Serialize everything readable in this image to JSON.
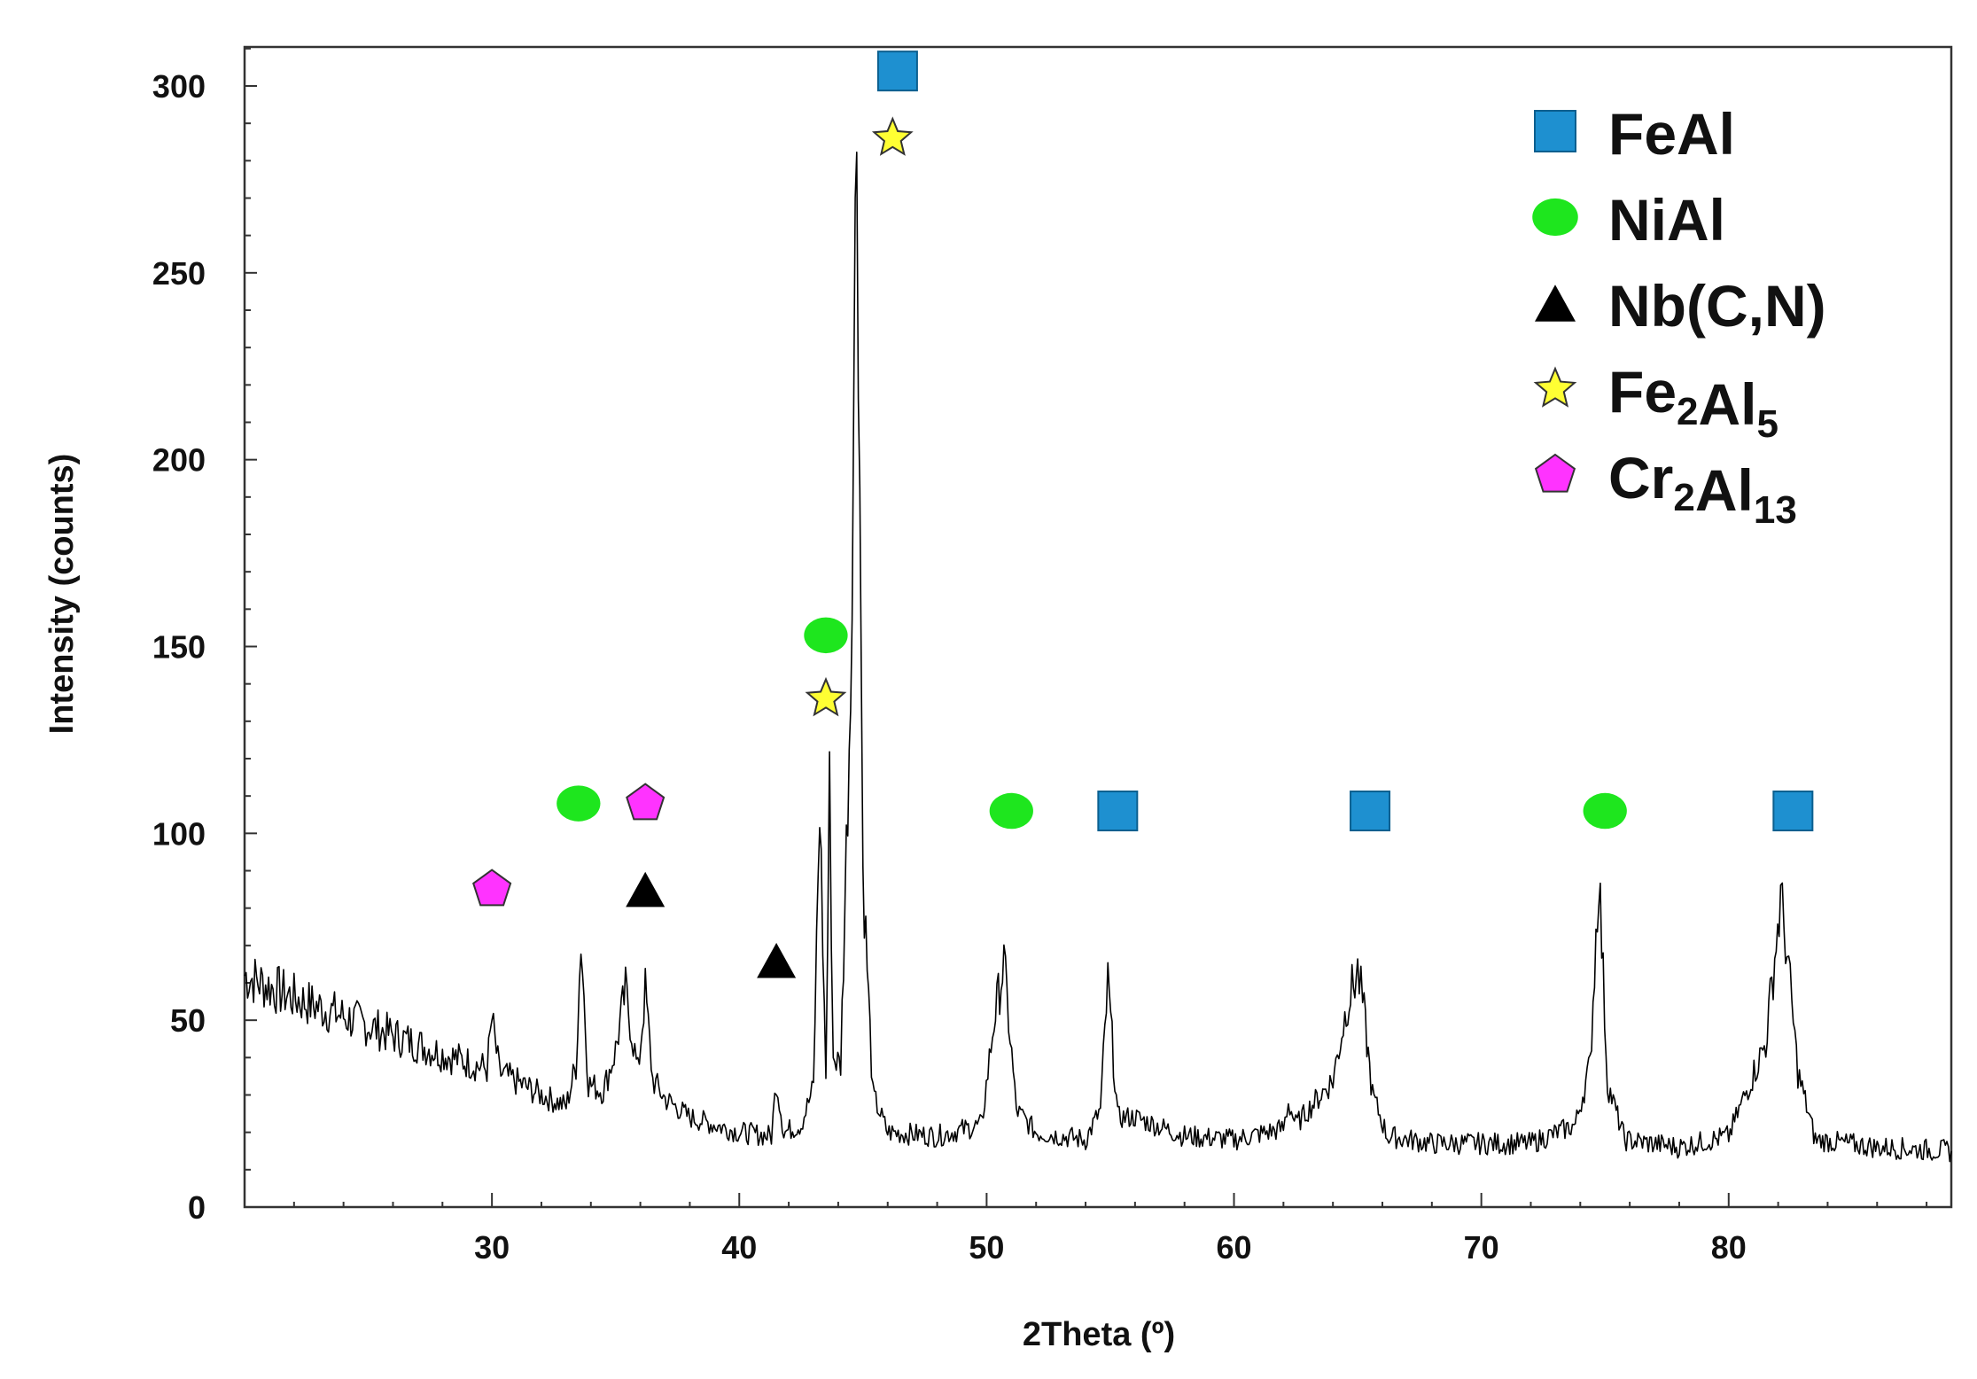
{
  "chart_data": {
    "type": "line",
    "xlabel": "2Theta (º)",
    "ylabel": "Intensity (counts)",
    "xlim": [
      20,
      89
    ],
    "ylim": [
      0,
      310
    ],
    "x_ticks": [
      30,
      40,
      50,
      60,
      70,
      80
    ],
    "y_ticks": [
      0,
      50,
      100,
      150,
      200,
      250,
      300
    ],
    "grid": false,
    "legend_position": "top-right",
    "series": [
      {
        "color": "#000000",
        "x": [
          20,
          22,
          24,
          26,
          28,
          29.8,
          30,
          30.3,
          32,
          33,
          33.4,
          33.6,
          33.9,
          34.5,
          35,
          35.4,
          35.9,
          36.2,
          36.5,
          37,
          38,
          40,
          41.3,
          41.5,
          41.8,
          42.5,
          43,
          43.25,
          43.5,
          43.65,
          43.8,
          44.1,
          44.5,
          44.75,
          45,
          45.4,
          46,
          48,
          49.8,
          50.3,
          50.7,
          51.2,
          52,
          54,
          54.6,
          54.9,
          55.3,
          56,
          58,
          60,
          62,
          62.2,
          62.5,
          63,
          64,
          64.6,
          65,
          65.2,
          65.6,
          66.2,
          68,
          70,
          72,
          73.8,
          74.4,
          74.75,
          75.1,
          75.8,
          78,
          80,
          81.5,
          82.1,
          82.3,
          82.8,
          83.5,
          86,
          89
        ],
        "values": [
          62,
          56,
          51,
          46,
          41,
          37,
          50,
          36,
          30,
          27,
          38,
          72,
          33,
          31,
          42,
          58,
          36,
          58,
          34,
          29,
          24,
          20,
          19,
          34,
          20,
          22,
          32,
          108,
          35,
          112,
          40,
          38,
          140,
          295,
          90,
          30,
          20,
          19,
          22,
          50,
          65,
          26,
          20,
          18,
          26,
          60,
          24,
          24,
          19,
          18,
          21,
          28,
          22,
          26,
          34,
          55,
          63,
          55,
          30,
          19,
          17,
          17,
          17,
          22,
          38,
          90,
          33,
          18,
          16,
          19,
          44,
          82,
          72,
          36,
          18,
          16,
          15
        ]
      }
    ],
    "legend": [
      {
        "marker": "square",
        "color": "#1e90d0",
        "label": "FeAl",
        "sub": ""
      },
      {
        "marker": "ellipse",
        "color": "#1ee61e",
        "label": "NiAl",
        "sub": ""
      },
      {
        "marker": "triangle",
        "color": "#000000",
        "label": "Nb(C,N)",
        "sub": ""
      },
      {
        "marker": "star",
        "color": "#ffff33",
        "label": "Fe",
        "sub": "2",
        "label2": "Al",
        "sub2": "5"
      },
      {
        "marker": "pentagon",
        "color": "#ff33ff",
        "label": "Cr",
        "sub": "2",
        "label2": "Al",
        "sub2": "13"
      }
    ],
    "phase_markers": [
      {
        "marker": "square",
        "color": "#1e90d0",
        "x": 46.4,
        "y": 304
      },
      {
        "marker": "star",
        "color": "#ffff33",
        "x": 46.2,
        "y": 286
      },
      {
        "marker": "ellipse",
        "color": "#1ee61e",
        "x": 43.5,
        "y": 153
      },
      {
        "marker": "star",
        "color": "#ffff33",
        "x": 43.5,
        "y": 136
      },
      {
        "marker": "ellipse",
        "color": "#1ee61e",
        "x": 33.5,
        "y": 108
      },
      {
        "marker": "pentagon",
        "color": "#ff33ff",
        "x": 36.2,
        "y": 108
      },
      {
        "marker": "pentagon",
        "color": "#ff33ff",
        "x": 30.0,
        "y": 85
      },
      {
        "marker": "triangle",
        "color": "#000000",
        "x": 36.2,
        "y": 85
      },
      {
        "marker": "triangle",
        "color": "#000000",
        "x": 41.5,
        "y": 66
      },
      {
        "marker": "ellipse",
        "color": "#1ee61e",
        "x": 51.0,
        "y": 106
      },
      {
        "marker": "square",
        "color": "#1e90d0",
        "x": 55.3,
        "y": 106
      },
      {
        "marker": "square",
        "color": "#1e90d0",
        "x": 65.5,
        "y": 106
      },
      {
        "marker": "ellipse",
        "color": "#1ee61e",
        "x": 75.0,
        "y": 106
      },
      {
        "marker": "square",
        "color": "#1e90d0",
        "x": 82.6,
        "y": 106
      }
    ]
  }
}
